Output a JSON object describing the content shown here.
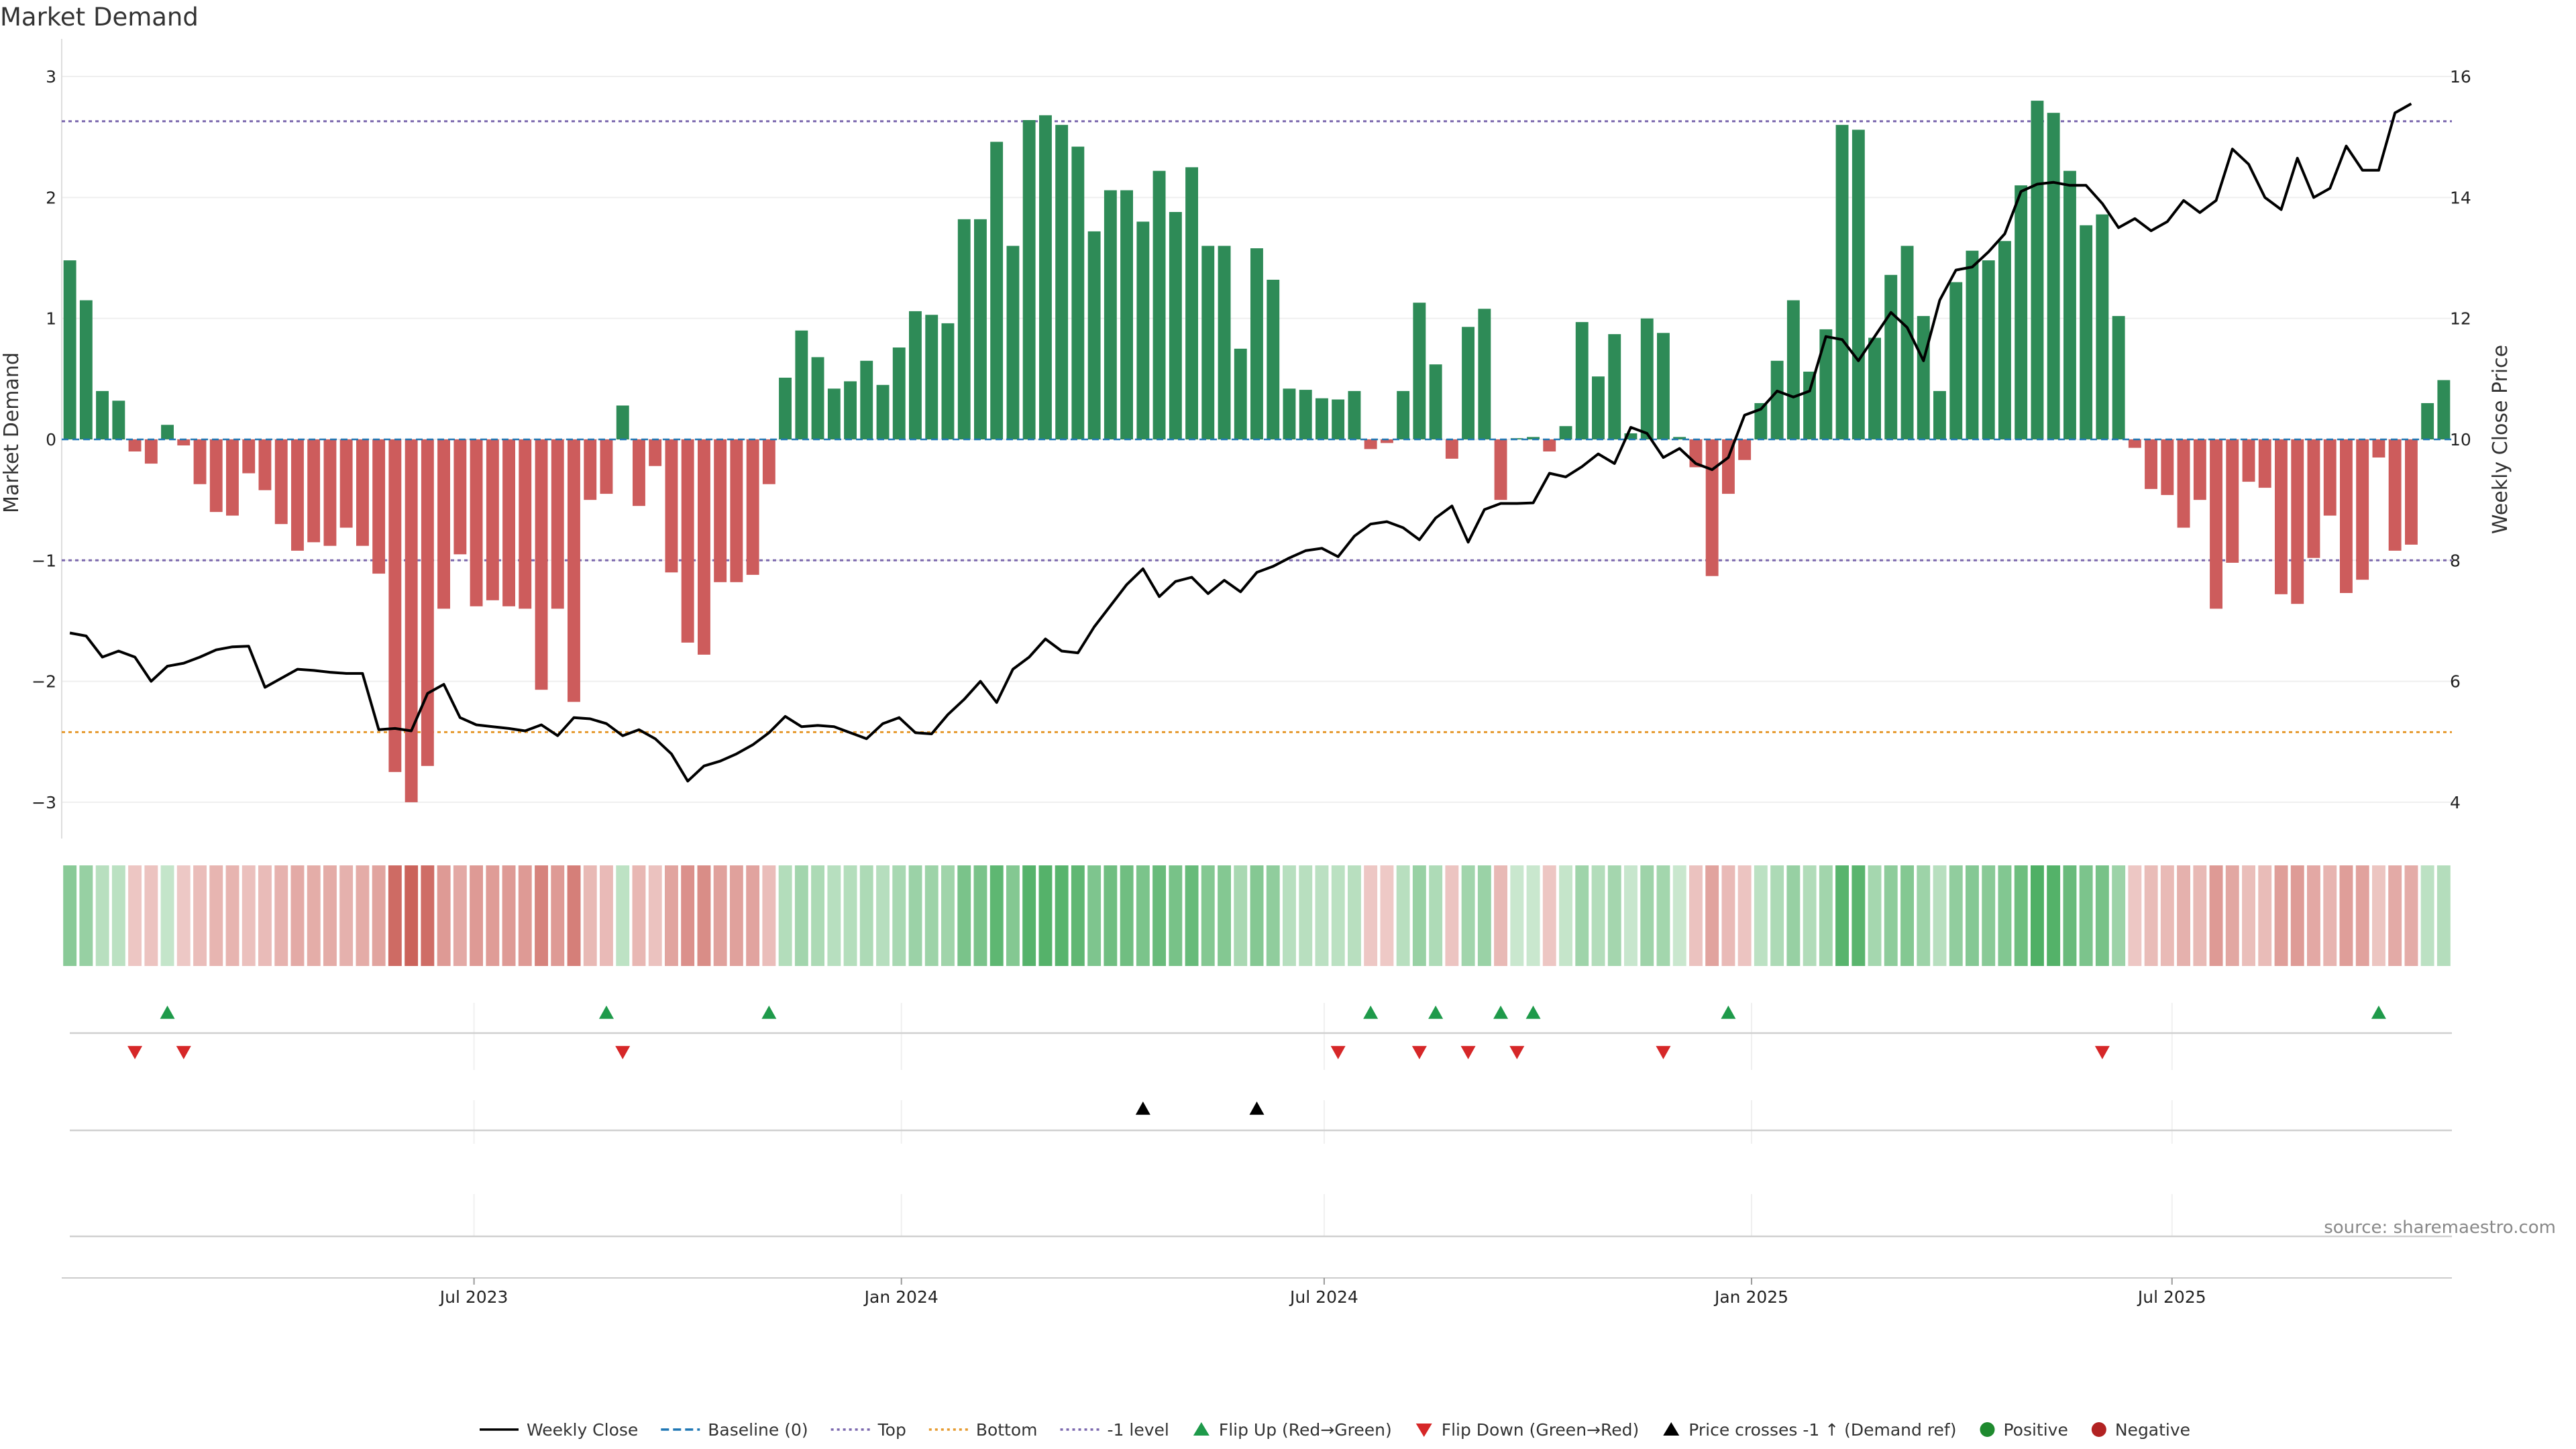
{
  "title": "Market Demand",
  "source": "source: sharemaestro.com",
  "chart_data": {
    "type": "bar",
    "title": "Market Demand",
    "x_start": "2023-01-08",
    "x_step_days": 7,
    "x_ticks": [
      {
        "date": "2023-07-01",
        "label": "Jul 2023"
      },
      {
        "date": "2024-01-01",
        "label": "Jan 2024"
      },
      {
        "date": "2024-07-01",
        "label": "Jul 2024"
      },
      {
        "date": "2025-01-01",
        "label": "Jan 2025"
      },
      {
        "date": "2025-07-01",
        "label": "Jul 2025"
      }
    ],
    "y_left": {
      "label": "Market Demand",
      "range": [
        -3.3,
        3.2
      ],
      "ticks": [
        -3,
        -2,
        -1,
        0,
        1,
        2,
        3
      ]
    },
    "y_right": {
      "label": "Weekly Close Price",
      "range": [
        3.4,
        16.4
      ],
      "ticks": [
        4,
        6,
        8,
        10,
        12,
        14,
        16
      ]
    },
    "reference_lines": {
      "baseline": 0,
      "top": 2.63,
      "bottom": -2.42,
      "minus_one": -1
    },
    "colors": {
      "positive_bar": "#2e8b57",
      "negative_bar": "#cd5c5c",
      "price_line": "#000000",
      "flip_up": "#1e9a4a",
      "flip_down": "#d62728",
      "price_cross": "#000000",
      "positive_dot": "#1e8a2e",
      "negative_dot": "#b22222"
    },
    "series": [
      {
        "name": "Market Demand",
        "values": [
          1.48,
          1.15,
          0.4,
          0.32,
          -0.1,
          -0.2,
          0.12,
          -0.05,
          -0.37,
          -0.6,
          -0.63,
          -0.28,
          -0.42,
          -0.7,
          -0.92,
          -0.85,
          -0.88,
          -0.73,
          -0.88,
          -1.11,
          -2.75,
          -3.0,
          -2.7,
          -1.4,
          -0.95,
          -1.38,
          -1.33,
          -1.38,
          -1.4,
          -2.07,
          -1.4,
          -2.17,
          -0.5,
          -0.45,
          0.28,
          -0.55,
          -0.22,
          -1.1,
          -1.68,
          -1.78,
          -1.18,
          -1.18,
          -1.12,
          -0.37,
          0.51,
          0.9,
          0.68,
          0.42,
          0.48,
          0.65,
          0.45,
          0.76,
          1.06,
          1.03,
          0.96,
          1.82,
          1.82,
          2.46,
          1.6,
          2.64,
          2.68,
          2.6,
          2.42,
          1.72,
          2.06,
          2.06,
          1.8,
          2.22,
          1.88,
          2.25,
          1.6,
          1.6,
          0.75,
          1.58,
          1.32,
          0.42,
          0.41,
          0.34,
          0.33,
          0.4,
          -0.08,
          -0.03,
          0.4,
          1.13,
          0.62,
          -0.16,
          0.93,
          1.08,
          -0.5,
          0.01,
          0.02,
          -0.1,
          0.11,
          0.97,
          0.52,
          0.87,
          0.05,
          1.0,
          0.88,
          0.02,
          -0.23,
          -1.13,
          -0.45,
          -0.17,
          0.3,
          0.65,
          1.15,
          0.56,
          0.91,
          2.6,
          2.56,
          0.84,
          1.36,
          1.6,
          1.02,
          0.4,
          1.3,
          1.56,
          1.48,
          1.64,
          2.1,
          2.8,
          2.7,
          2.22,
          1.77,
          1.86,
          1.02,
          -0.07,
          -0.41,
          -0.46,
          -0.73,
          -0.5,
          -1.4,
          -1.02,
          -0.35,
          -0.4,
          -1.28,
          -1.36,
          -0.98,
          -0.63,
          -1.27,
          -1.16,
          -0.15,
          -0.92,
          -0.87,
          0.3,
          0.49
        ]
      },
      {
        "name": "Weekly Close",
        "values": [
          6.8,
          6.75,
          6.4,
          6.5,
          6.4,
          6.0,
          6.25,
          6.3,
          6.4,
          6.52,
          6.57,
          6.58,
          5.9,
          6.05,
          6.2,
          6.18,
          6.15,
          6.13,
          6.13,
          5.2,
          5.22,
          5.18,
          5.8,
          5.95,
          5.4,
          5.28,
          5.25,
          5.22,
          5.18,
          5.28,
          5.1,
          5.4,
          5.38,
          5.3,
          5.1,
          5.2,
          5.05,
          4.8,
          4.35,
          4.6,
          4.68,
          4.8,
          4.95,
          5.15,
          5.42,
          5.25,
          5.27,
          5.25,
          5.15,
          5.05,
          5.3,
          5.4,
          5.15,
          5.13,
          5.45,
          5.7,
          6.0,
          5.65,
          6.2,
          6.4,
          6.7,
          6.5,
          6.47,
          6.9,
          7.25,
          7.6,
          7.86,
          7.4,
          7.65,
          7.72,
          7.45,
          7.67,
          7.48,
          7.8,
          7.9,
          8.04,
          8.16,
          8.2,
          8.06,
          8.4,
          8.6,
          8.64,
          8.54,
          8.34,
          8.7,
          8.9,
          8.3,
          8.84,
          8.94,
          8.94,
          8.95,
          9.44,
          9.38,
          9.55,
          9.76,
          9.6,
          10.2,
          10.1,
          9.7,
          9.85,
          9.6,
          9.5,
          9.7,
          10.4,
          10.5,
          10.8,
          10.7,
          10.8,
          11.7,
          11.65,
          11.3,
          11.7,
          12.1,
          11.85,
          11.3,
          12.3,
          12.8,
          12.85,
          13.1,
          13.4,
          14.1,
          14.22,
          14.25,
          14.2,
          14.2,
          13.9,
          13.5,
          13.65,
          13.45,
          13.6,
          13.95,
          13.75,
          13.95,
          14.8,
          14.55,
          14.0,
          13.8,
          14.65,
          14.0,
          14.15,
          14.85,
          14.45,
          14.45,
          15.4,
          15.55
        ]
      }
    ],
    "flip_up_index": [
      6,
      33,
      43,
      80,
      84,
      88,
      90,
      102,
      142
    ],
    "flip_down_index": [
      4,
      7,
      34,
      78,
      83,
      86,
      89,
      98,
      125
    ],
    "price_cross_index": [
      66,
      73
    ],
    "legend": [
      {
        "label": "Weekly Close",
        "kind": "line-solid",
        "color": "#000000"
      },
      {
        "label": "Baseline (0)",
        "kind": "line-dashed",
        "color": "#1f77b4"
      },
      {
        "label": "Top",
        "kind": "line-dotted",
        "color": "#7b68ae"
      },
      {
        "label": "Bottom",
        "kind": "line-dotted",
        "color": "#e69a2e"
      },
      {
        "label": "-1 level",
        "kind": "line-dotted",
        "color": "#7b68ae"
      },
      {
        "label": "Flip Up (Red→Green)",
        "kind": "tri-up",
        "color": "#1e9a4a"
      },
      {
        "label": "Flip Down (Green→Red)",
        "kind": "tri-down",
        "color": "#d62728"
      },
      {
        "label": "Price crosses -1 ↑ (Demand ref)",
        "kind": "tri-up",
        "color": "#000000"
      },
      {
        "label": "Positive",
        "kind": "dot",
        "color": "#1e8a2e"
      },
      {
        "label": "Negative",
        "kind": "dot",
        "color": "#b22222"
      }
    ]
  }
}
